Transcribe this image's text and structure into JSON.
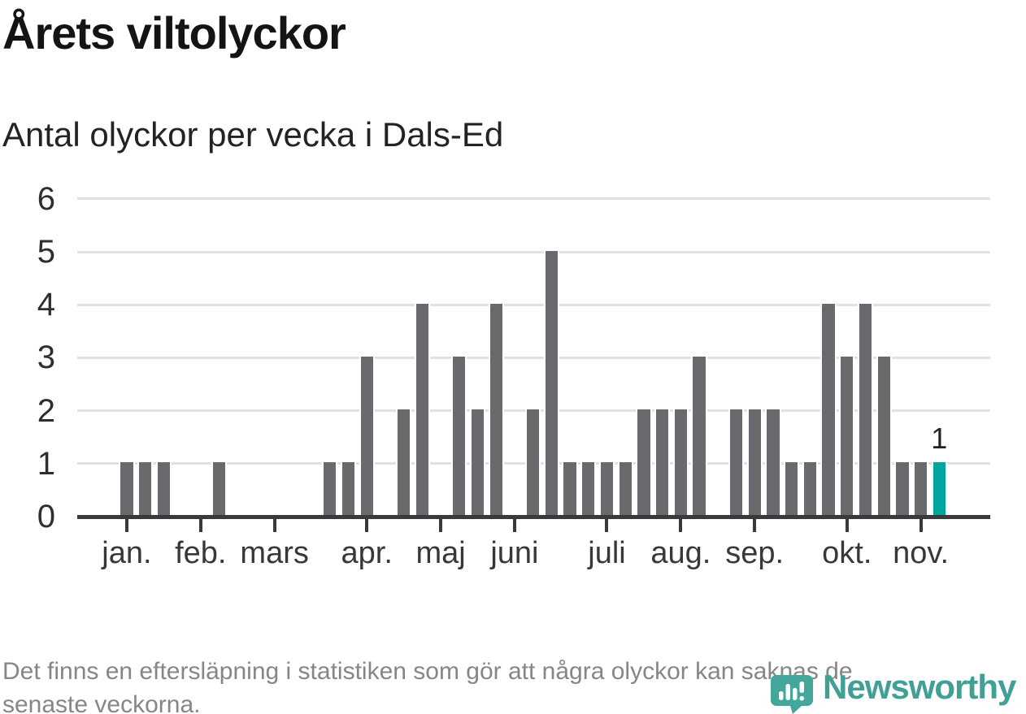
{
  "title": "Årets viltolyckor",
  "subtitle": "Antal olyckor per vecka i Dals-Ed",
  "footer": {
    "line1": "Det finns en eftersläpning i statistiken som gör att några olyckor kan saknas de",
    "line2": "senaste veckorna."
  },
  "brand": {
    "name": "Newsworthy",
    "color": "#41a096",
    "icon": "newsworthy-pin-bar-chart"
  },
  "colors": {
    "bar": "#69696e",
    "highlight": "#00a5a0",
    "grid": "#e1e1e1",
    "axis": "#3a3a3a",
    "title_text": "#141414",
    "muted_text": "#868686"
  },
  "chart_data": {
    "type": "bar",
    "title": "Årets viltolyckor",
    "subtitle": "Antal olyckor per vecka i Dals-Ed",
    "x_unit": "vecka",
    "values": [
      1,
      1,
      1,
      0,
      0,
      1,
      0,
      0,
      0,
      0,
      0,
      1,
      1,
      3,
      0,
      2,
      4,
      0,
      3,
      2,
      4,
      0,
      2,
      5,
      1,
      1,
      1,
      1,
      2,
      2,
      2,
      3,
      0,
      2,
      2,
      2,
      1,
      1,
      4,
      3,
      4,
      3,
      1,
      1,
      1
    ],
    "months": [
      {
        "label": "jan.",
        "week": 0
      },
      {
        "label": "feb.",
        "week": 4
      },
      {
        "label": "mars",
        "week": 8
      },
      {
        "label": "apr.",
        "week": 13
      },
      {
        "label": "maj",
        "week": 17
      },
      {
        "label": "juni",
        "week": 21
      },
      {
        "label": "juli",
        "week": 26
      },
      {
        "label": "aug.",
        "week": 30
      },
      {
        "label": "sep.",
        "week": 34
      },
      {
        "label": "okt.",
        "week": 39
      },
      {
        "label": "nov.",
        "week": 43
      }
    ],
    "yticks": [
      0,
      1,
      2,
      3,
      4,
      5,
      6
    ],
    "ylim": [
      0,
      6
    ],
    "grid": true,
    "legend": false,
    "highlight": {
      "index": 44,
      "label": "1",
      "value": 1
    }
  }
}
